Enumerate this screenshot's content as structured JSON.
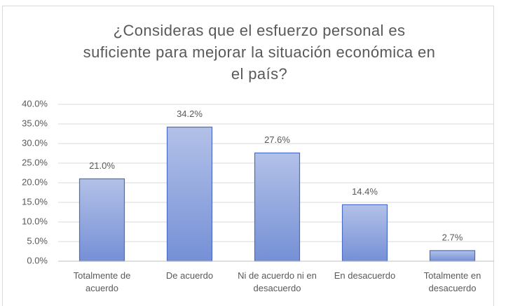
{
  "chart_data": {
    "type": "bar",
    "title": "¿Consideras que el esfuerzo personal es suficiente para mejorar la situación económica en el país?",
    "categories": [
      "Totalmente de acuerdo",
      "De acuerdo",
      "Ni de acuerdo ni en desacuerdo",
      "En desacuerdo",
      "Totalmente en desacuerdo"
    ],
    "values": [
      21.0,
      34.2,
      27.6,
      14.4,
      2.7
    ],
    "value_labels": [
      "21.0%",
      "34.2%",
      "27.6%",
      "14.4%",
      "2.7%"
    ],
    "color": "#8ea3dc",
    "ylim": [
      0,
      40
    ],
    "yticks": [
      {
        "value": 0,
        "label": "0.0%"
      },
      {
        "value": 5,
        "label": "5.0%"
      },
      {
        "value": 10,
        "label": "10.0%"
      },
      {
        "value": 15,
        "label": "15.0%"
      },
      {
        "value": 20,
        "label": "20.0%"
      },
      {
        "value": 25,
        "label": "25.0%"
      },
      {
        "value": 30,
        "label": "30.0%"
      },
      {
        "value": 35,
        "label": "35.0%"
      },
      {
        "value": 40,
        "label": "40.0%"
      }
    ],
    "grid": true
  }
}
